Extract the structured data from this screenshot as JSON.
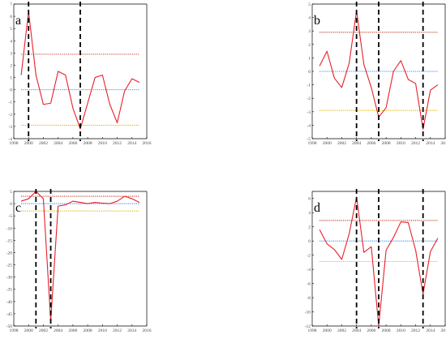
{
  "colors": {
    "series": "#e8202a",
    "upper_threshold": "#c0392b",
    "zero_line": "#3a8ee6",
    "lower_threshold": "#e6b800",
    "event_lines": "#000000"
  },
  "chart_data": [
    {
      "type": "line",
      "panel_label": "a",
      "x": [
        1999,
        2000,
        2001,
        2002,
        2003,
        2004,
        2005,
        2006,
        2007,
        2008,
        2009,
        2010,
        2011,
        2012,
        2013,
        2014,
        2015
      ],
      "series": [
        {
          "values": [
            1.2,
            6.4,
            1.2,
            -1.2,
            -1.1,
            1.5,
            1.2,
            -1.5,
            -3.2,
            -1.1,
            1.0,
            1.2,
            -1.2,
            -2.7,
            -0.1,
            0.9,
            0.6
          ]
        }
      ],
      "thresholds": {
        "upper": 2.9,
        "zero": 0,
        "lower": -2.9
      },
      "event_years": [
        2000,
        2007
      ],
      "xlim": [
        1998,
        2016
      ],
      "ylim": [
        -4,
        7
      ],
      "xticks": [
        1998,
        2000,
        2002,
        2004,
        2006,
        2008,
        2010,
        2012,
        2014,
        2016
      ],
      "yticks": [
        7,
        6,
        5,
        4,
        3,
        2,
        1,
        0,
        -1,
        -2,
        -3,
        -4
      ],
      "grid": false
    },
    {
      "type": "line",
      "panel_label": "b",
      "x": [
        1999,
        2000,
        2001,
        2002,
        2003,
        2004,
        2005,
        2006,
        2007,
        2008,
        2009,
        2010,
        2011,
        2012,
        2013,
        2014,
        2015
      ],
      "series": [
        {
          "values": [
            0.4,
            1.5,
            -0.5,
            -1.2,
            0.6,
            4.5,
            0.5,
            -1.2,
            -3.4,
            -2.7,
            0.0,
            0.8,
            -0.6,
            -0.9,
            -4.3,
            -1.4,
            -1.0
          ]
        }
      ],
      "thresholds": {
        "upper": 2.9,
        "zero": 0,
        "lower": -2.9
      },
      "event_years": [
        2004,
        2007,
        2013
      ],
      "xlim": [
        1998,
        2016
      ],
      "ylim": [
        -5,
        5
      ],
      "xticks": [
        1998,
        2000,
        2002,
        2004,
        2006,
        2008,
        2010,
        2012,
        2014,
        2016
      ],
      "yticks": [
        5,
        4,
        3,
        2,
        1,
        0,
        -1,
        -2,
        -3,
        -4,
        -5
      ],
      "grid": false
    },
    {
      "type": "line",
      "panel_label": "c",
      "x": [
        1999,
        2000,
        2001,
        2002,
        2003,
        2004,
        2005,
        2006,
        2007,
        2008,
        2009,
        2010,
        2011,
        2012,
        2013,
        2014,
        2015
      ],
      "series": [
        {
          "values": [
            1.0,
            2.0,
            5.0,
            2.0,
            -48.0,
            -1.0,
            -0.5,
            1.0,
            0.5,
            0.0,
            0.5,
            0.2,
            0.0,
            1.0,
            3.0,
            2.0,
            0.5
          ]
        }
      ],
      "thresholds": {
        "upper": 3.0,
        "zero": 0,
        "lower": -3.0
      },
      "event_years": [
        2001,
        2003
      ],
      "xlim": [
        1998,
        2016
      ],
      "ylim": [
        -50,
        5
      ],
      "xticks": [
        1998,
        2000,
        2002,
        2004,
        2006,
        2008,
        2010,
        2012,
        2014,
        2016
      ],
      "yticks": [
        5,
        0,
        -5,
        -10,
        -15,
        -20,
        -25,
        -30,
        -35,
        -40,
        -45,
        -50
      ],
      "grid": false
    },
    {
      "type": "line",
      "panel_label": "d",
      "x": [
        1999,
        2000,
        2001,
        2002,
        2003,
        2004,
        2005,
        2006,
        2007,
        2008,
        2009,
        2010,
        2011,
        2012,
        2013,
        2014,
        2015
      ],
      "series": [
        {
          "values": [
            1.6,
            -0.4,
            -1.2,
            -2.6,
            1.0,
            6.2,
            -1.6,
            -0.8,
            -12.0,
            -1.3,
            0.5,
            2.7,
            2.6,
            -1.3,
            -7.5,
            -1.5,
            0.4
          ]
        }
      ],
      "thresholds": {
        "upper": 2.9,
        "zero": 0,
        "lower": -2.9
      },
      "event_years": [
        2004,
        2007,
        2013
      ],
      "xlim": [
        1998,
        2016
      ],
      "ylim": [
        -12,
        7
      ],
      "xticks": [
        1998,
        2000,
        2002,
        2004,
        2006,
        2008,
        2010,
        2012,
        2014,
        2016
      ],
      "yticks": [
        6,
        4,
        2,
        0,
        -2,
        -4,
        -6,
        -8,
        -10,
        -12
      ],
      "grid": false
    }
  ]
}
